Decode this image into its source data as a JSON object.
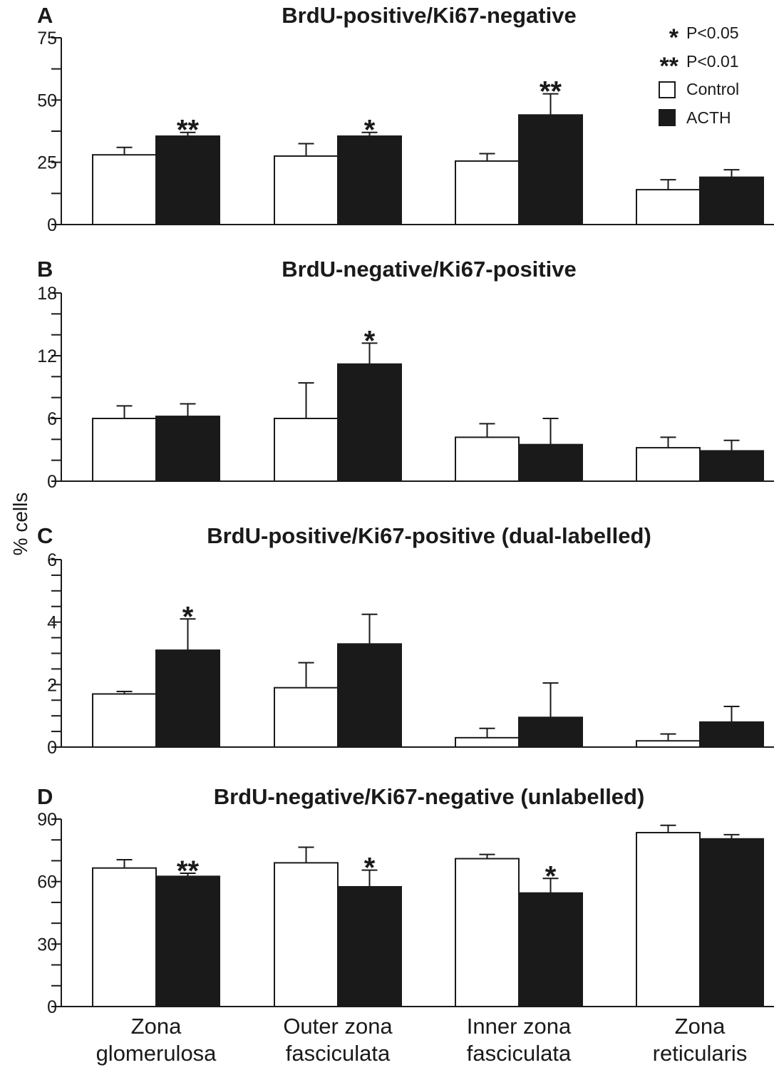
{
  "chart_data": {
    "type": "bar",
    "ylabel": "% cells",
    "categories": [
      [
        "Zona",
        "glomerulosa"
      ],
      [
        "Outer zona",
        "fasciculata"
      ],
      [
        "Inner zona",
        "fasciculata"
      ],
      [
        "Zona",
        "reticularis"
      ]
    ],
    "legend": {
      "placement": "top-right",
      "significance": [
        {
          "symbol": "*",
          "label": "P<0.05"
        },
        {
          "symbol": "**",
          "label": "P<0.01"
        }
      ],
      "series": [
        {
          "name": "Control",
          "color": "#ffffff"
        },
        {
          "name": "ACTH",
          "color": "#1a1a1a"
        }
      ]
    },
    "panels": [
      {
        "letter": "A",
        "title": "BrdU-positive/Ki67-negative",
        "ylim": [
          0,
          75
        ],
        "major_ticks": [
          0,
          25,
          50,
          75
        ],
        "minor_step": 12.5,
        "series": [
          {
            "name": "Control",
            "values": [
              28,
              27.5,
              25.5,
              14
            ],
            "errors": [
              3,
              5,
              3,
              4
            ]
          },
          {
            "name": "ACTH",
            "values": [
              35.5,
              35.5,
              44,
              19
            ],
            "errors": [
              1.5,
              1.5,
              8.5,
              3
            ]
          }
        ],
        "significance": [
          "**",
          "*",
          "**",
          ""
        ]
      },
      {
        "letter": "B",
        "title": "BrdU-negative/Ki67-positive",
        "ylim": [
          0,
          18
        ],
        "major_ticks": [
          0,
          6,
          12,
          18
        ],
        "minor_step": 2,
        "series": [
          {
            "name": "Control",
            "values": [
              6,
              6,
              4.2,
              3.2
            ],
            "errors": [
              1.2,
              3.4,
              1.3,
              1
            ]
          },
          {
            "name": "ACTH",
            "values": [
              6.2,
              11.2,
              3.5,
              2.9
            ],
            "errors": [
              1.2,
              2,
              2.5,
              1
            ]
          }
        ],
        "significance": [
          "",
          "*",
          "",
          ""
        ]
      },
      {
        "letter": "C",
        "title": "BrdU-positive/Ki67-positive (dual-labelled)",
        "ylim": [
          0,
          6
        ],
        "major_ticks": [
          0,
          2,
          4,
          6
        ],
        "minor_step": 0.5,
        "series": [
          {
            "name": "Control",
            "values": [
              1.7,
              1.9,
              0.3,
              0.2
            ],
            "errors": [
              0.08,
              0.8,
              0.3,
              0.22
            ]
          },
          {
            "name": "ACTH",
            "values": [
              3.1,
              3.3,
              0.95,
              0.8
            ],
            "errors": [
              1,
              0.95,
              1.1,
              0.5
            ]
          }
        ],
        "significance": [
          "*",
          "",
          "",
          ""
        ]
      },
      {
        "letter": "D",
        "title": "BrdU-negative/Ki67-negative (unlabelled)",
        "ylim": [
          0,
          90
        ],
        "major_ticks": [
          0,
          30,
          60,
          90
        ],
        "minor_step": 10,
        "series": [
          {
            "name": "Control",
            "values": [
              66.5,
              69,
              71,
              83.5
            ],
            "errors": [
              4,
              7.5,
              2,
              3.5
            ]
          },
          {
            "name": "ACTH",
            "values": [
              62.5,
              57.5,
              54.5,
              80.5
            ],
            "errors": [
              1.5,
              8,
              7,
              2
            ]
          }
        ],
        "significance": [
          "**",
          "*",
          "*",
          ""
        ]
      }
    ]
  }
}
